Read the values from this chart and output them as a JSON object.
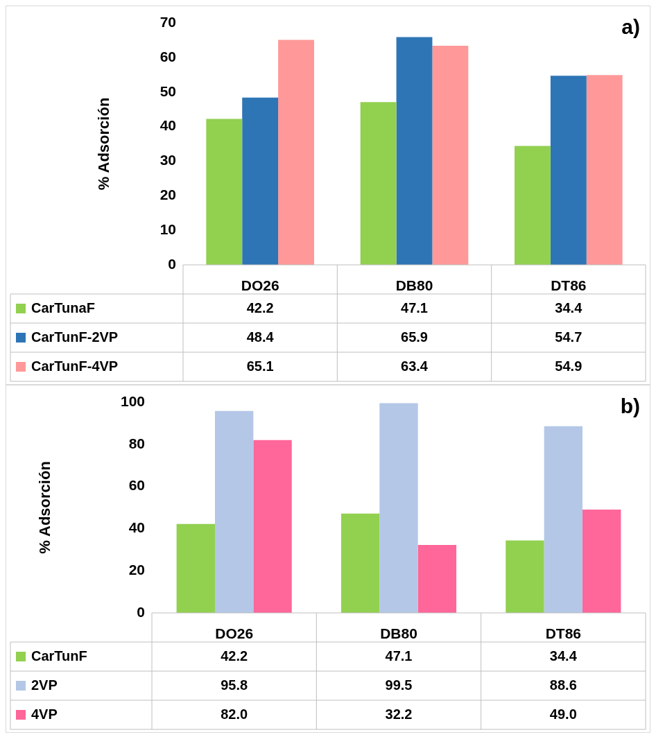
{
  "chart_data": [
    {
      "type": "bar",
      "title": "a)",
      "ylabel": "% Adsorción",
      "categories": [
        "DO26",
        "DB80",
        "DT86"
      ],
      "series": [
        {
          "name": "CarTunaF",
          "color": "#92d050",
          "values": [
            42.2,
            47.1,
            34.4
          ]
        },
        {
          "name": "CarTunF-2VP",
          "color": "#2e75b6",
          "values": [
            48.4,
            65.9,
            54.7
          ]
        },
        {
          "name": "CarTunF-4VP",
          "color": "#ff9999",
          "values": [
            65.1,
            63.4,
            54.9
          ]
        }
      ],
      "ylim": [
        0,
        70
      ],
      "yticks": [
        0,
        10,
        20,
        30,
        40,
        50,
        60,
        70
      ],
      "grid": false,
      "legend": "bottom",
      "data_labels": true
    },
    {
      "type": "bar",
      "title": "b)",
      "ylabel": "% Adsorción",
      "categories": [
        "DO26",
        "DB80",
        "DT86"
      ],
      "series": [
        {
          "name": "CarTunF",
          "color": "#92d050",
          "values": [
            42.2,
            47.1,
            34.4
          ],
          "value_labels": [
            "42.2",
            "47.1",
            "34.4"
          ]
        },
        {
          "name": "2VP",
          "color": "#b4c7e7",
          "values": [
            95.8,
            99.5,
            88.6
          ],
          "value_labels": [
            "95.8",
            "99.5",
            "88.6"
          ]
        },
        {
          "name": "4VP",
          "color": "#ff6699",
          "values": [
            82.0,
            32.2,
            49.0
          ],
          "value_labels": [
            "82.0",
            "32.2",
            "49.0"
          ]
        }
      ],
      "ylim": [
        0,
        100
      ],
      "yticks": [
        0,
        20,
        40,
        60,
        80,
        100
      ],
      "grid": false,
      "legend": "bottom"
    }
  ]
}
